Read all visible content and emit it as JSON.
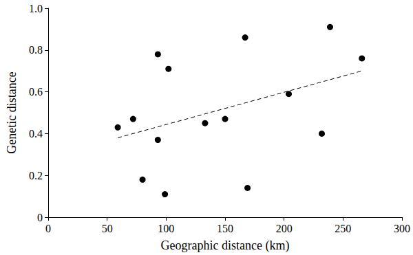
{
  "chart_data": {
    "type": "scatter",
    "x_label": "Geographic distance (km)",
    "y_label": "Genetic distance",
    "series": [
      {
        "type": "scatter",
        "color": "#000000",
        "marker": "circle",
        "x": [
          59,
          72,
          80,
          93,
          93,
          99,
          102,
          133,
          150,
          167,
          169,
          204,
          232,
          239,
          266
        ],
        "values": [
          0.43,
          0.47,
          0.18,
          0.78,
          0.37,
          0.11,
          0.71,
          0.45,
          0.47,
          0.86,
          0.14,
          0.59,
          0.4,
          0.91,
          0.76
        ]
      },
      {
        "type": "line",
        "color": "#000000",
        "line_style": "dashed",
        "x": [
          59,
          266
        ],
        "values": [
          0.38,
          0.7
        ]
      }
    ],
    "xlim": [
      0,
      300
    ],
    "xticks": [
      0,
      50,
      100,
      150,
      200,
      250,
      300
    ],
    "ylim": [
      0,
      1
    ],
    "yticks": [
      0,
      0.2,
      0.4,
      0.6,
      0.8,
      {
        "value": 1,
        "label": "1.0"
      }
    ],
    "grid": false
  }
}
